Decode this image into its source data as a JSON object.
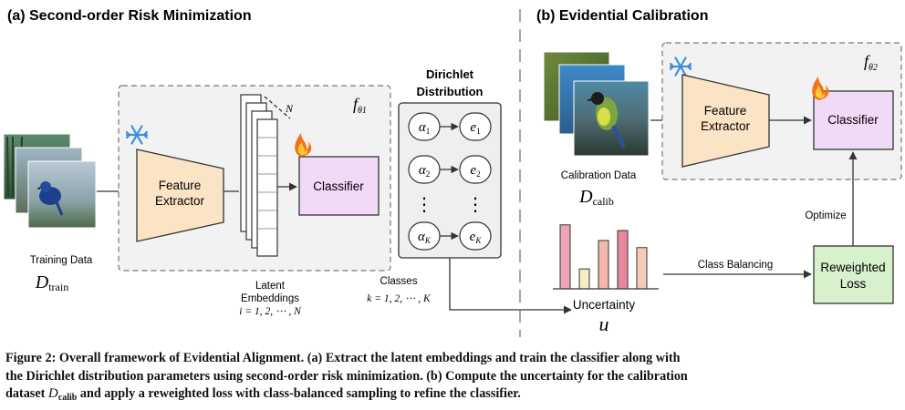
{
  "panel_a": {
    "title": "(a) Second-order Risk Minimization",
    "f_label": "f",
    "f_sub": "θ1",
    "feature_extractor": [
      "Feature",
      "Extractor"
    ],
    "classifier": "Classifier",
    "n_label": "N",
    "latent_label": [
      "Latent",
      "Embeddings",
      "i = 1, 2, ⋯ , N"
    ],
    "training_data": "Training Data",
    "d_train_main": "D",
    "d_train_sub": "train"
  },
  "dirichlet": {
    "title_lines": [
      "Dirichlet",
      "Distribution"
    ],
    "alphas": [
      {
        "a": "α",
        "a_sub": "1",
        "e": "e",
        "e_sub": "1"
      },
      {
        "a": "α",
        "a_sub": "2",
        "e": "e",
        "e_sub": "2"
      },
      {
        "a": "α",
        "a_sub": "K",
        "e": "e",
        "e_sub": "K"
      }
    ],
    "dots": "⋮",
    "classes_label": [
      "Classes",
      "k = 1, 2, ⋯ , K"
    ]
  },
  "panel_b": {
    "title": "(b) Evidential Calibration",
    "f_label": "f",
    "f_sub": "θ2",
    "feature_extractor": [
      "Feature",
      "Extractor"
    ],
    "classifier": "Classifier",
    "calibration_data": "Calibration Data",
    "d_calib_main": "D",
    "d_calib_sub": "calib",
    "uncertainty_label": "Uncertainty",
    "u_symbol": "u",
    "class_balancing": "Class Balancing",
    "optimize": "Optimize",
    "reweighted_loss": [
      "Reweighted",
      "Loss"
    ]
  },
  "uncertainty_bars": {
    "values": [
      0.9,
      0.28,
      0.68,
      0.82,
      0.58
    ],
    "colors": [
      "#eea4b7",
      "#f6edc4",
      "#f2b7ad",
      "#e9889c",
      "#f6ccb8"
    ]
  },
  "colors": {
    "feature_fill": "#fbe3c5",
    "classifier_fill": "#f1d9f8",
    "reweighted_fill": "#d6f1cb",
    "dirichlet_fill": "#efefef",
    "snowflake": "#3b8fe0",
    "fire": "#f3731d"
  },
  "caption": {
    "line1": "Figure 2: Overall framework of Evidential Alignment. (a) Extract the latent embeddings and train the classifier along with",
    "line2": "the Dirichlet distribution parameters using second-order risk minimization. (b) Compute the uncertainty for the calibration",
    "line3_pre": "dataset ",
    "line3_sym": "D",
    "line3_sub": "calib",
    "line3_post": " and apply a reweighted loss with class-balanced sampling to refine the classifier."
  }
}
